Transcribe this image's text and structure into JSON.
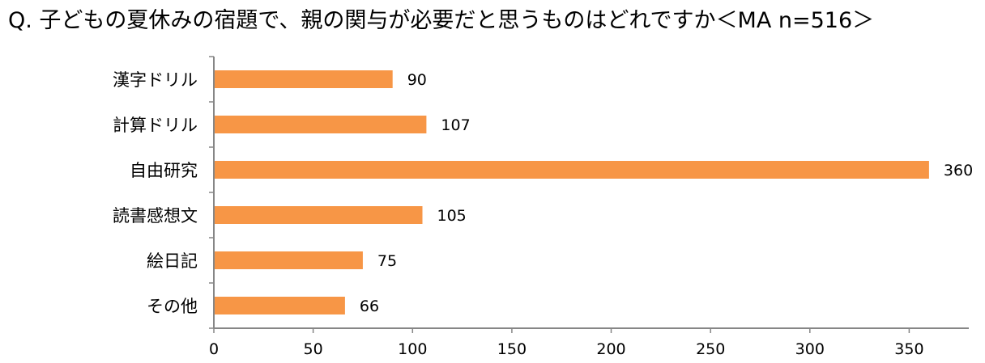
{
  "chart_data": {
    "type": "bar",
    "orientation": "horizontal",
    "title": "Q. 子どもの夏休みの宿題で、親の関与が必要だと思うものはどれですか＜MA n=516＞",
    "categories": [
      "漢字ドリル",
      "計算ドリル",
      "自由研究",
      "読書感想文",
      "絵日記",
      "その他"
    ],
    "values": [
      90,
      107,
      360,
      105,
      75,
      66
    ],
    "xlim": [
      0,
      380
    ],
    "x_ticks": [
      0,
      50,
      100,
      150,
      200,
      250,
      300,
      350
    ],
    "xlabel": "",
    "ylabel": "",
    "grid": false,
    "legend": "none",
    "bar_color": "#F79646",
    "axis_color": "#868686"
  }
}
